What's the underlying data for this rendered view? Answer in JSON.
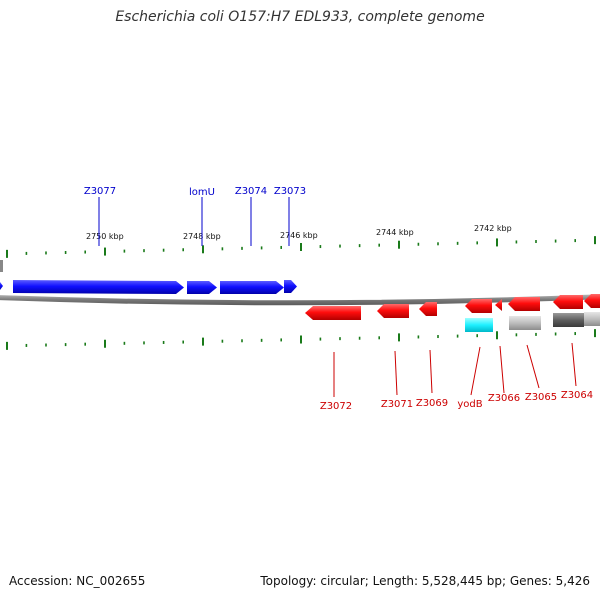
{
  "title": "Escherichia coli O157:H7 EDL933, complete genome",
  "footer": {
    "accession": "Accession: NC_002655",
    "summary": "Topology: circular; Length: 5,528,445 bp; Genes: 5,426"
  },
  "ruler": {
    "unit": "kbp",
    "labels": [
      "2750 kbp",
      "2748 kbp",
      "2746 kbp",
      "2744 kbp",
      "2742 kbp"
    ]
  },
  "genes_forward": [
    {
      "name": "Z3077",
      "color": "#0000cc"
    },
    {
      "name": "lomU",
      "color": "#0000cc"
    },
    {
      "name": "Z3074",
      "color": "#0000cc"
    },
    {
      "name": "Z3073",
      "color": "#0000cc"
    }
  ],
  "genes_reverse": [
    {
      "name": "Z3072",
      "color": "#cc0000"
    },
    {
      "name": "Z3071",
      "color": "#cc0000"
    },
    {
      "name": "Z3069",
      "color": "#cc0000"
    },
    {
      "name": "yodB",
      "color": "#cc0000"
    },
    {
      "name": "Z3066",
      "color": "#cc0000"
    },
    {
      "name": "Z3065",
      "color": "#cc0000"
    },
    {
      "name": "Z3064",
      "color": "#cc0000"
    }
  ],
  "colors": {
    "forward_strand": "#1a1aff",
    "reverse_strand": "#ff1a1a",
    "tick": "#1a7a1a",
    "backbone": "#888888",
    "cyan_feature": "#22ffff",
    "gray_feature": "#bbbbbb",
    "darkgray_feature": "#666666"
  }
}
